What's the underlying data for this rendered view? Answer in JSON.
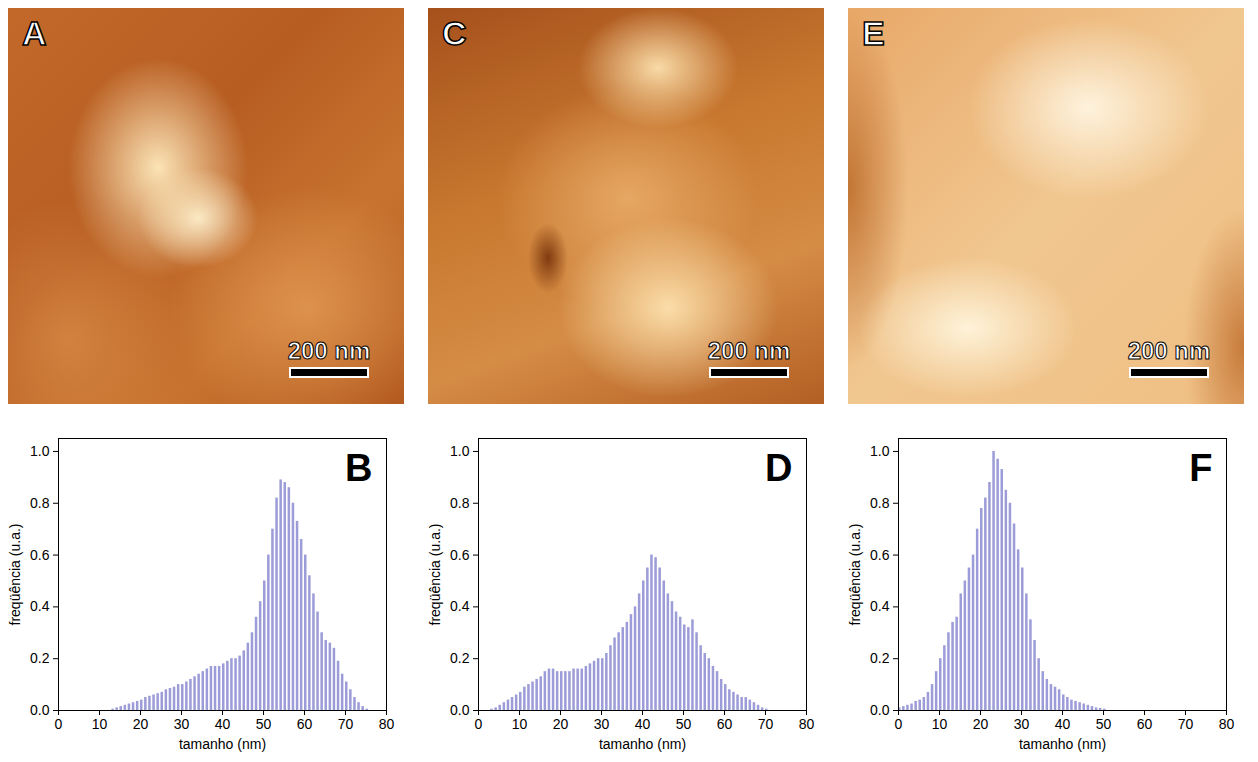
{
  "images": [
    {
      "label": "A",
      "scale_bar": "200 nm"
    },
    {
      "label": "C",
      "scale_bar": "200 nm"
    },
    {
      "label": "E",
      "scale_bar": "200 nm"
    }
  ],
  "chart_data": [
    {
      "type": "histogram",
      "title": "B",
      "x_label": "tamanho (nm)",
      "y_label": "freqüência (u.a.)",
      "color": "#9c9cd8",
      "bins": [
        0,
        1,
        2,
        3,
        4,
        5,
        6,
        7,
        8,
        9,
        10,
        11,
        12,
        13,
        14,
        15,
        16,
        17,
        18,
        19,
        20,
        21,
        22,
        23,
        24,
        25,
        26,
        27,
        28,
        29,
        30,
        31,
        32,
        33,
        34,
        35,
        36,
        37,
        38,
        39,
        40,
        41,
        42,
        43,
        44,
        45,
        46,
        47,
        48,
        49,
        50,
        51,
        52,
        53,
        54,
        55,
        56,
        57,
        58,
        59,
        60,
        61,
        62,
        63,
        64,
        65,
        66,
        67,
        68,
        69,
        70,
        71,
        72,
        73,
        74,
        75,
        76,
        77,
        78,
        79,
        80
      ],
      "values": [
        0,
        0,
        0,
        0,
        0,
        0,
        0,
        0,
        0,
        0,
        0,
        0,
        0,
        0.005,
        0.01,
        0.015,
        0.02,
        0.025,
        0.03,
        0.035,
        0.04,
        0.05,
        0.055,
        0.06,
        0.065,
        0.07,
        0.08,
        0.085,
        0.09,
        0.1,
        0.1,
        0.11,
        0.12,
        0.13,
        0.14,
        0.15,
        0.16,
        0.17,
        0.17,
        0.17,
        0.18,
        0.19,
        0.2,
        0.2,
        0.21,
        0.23,
        0.26,
        0.3,
        0.36,
        0.42,
        0.5,
        0.6,
        0.7,
        0.82,
        0.89,
        0.88,
        0.86,
        0.8,
        0.73,
        0.66,
        0.6,
        0.52,
        0.45,
        0.38,
        0.3,
        0.27,
        0.26,
        0.24,
        0.19,
        0.14,
        0.11,
        0.08,
        0.05,
        0.03,
        0.015,
        0.005,
        0,
        0,
        0,
        0
      ],
      "xlim": [
        0,
        80
      ],
      "xticks": [
        0,
        10,
        20,
        30,
        40,
        50,
        60,
        70,
        80
      ],
      "ylim": [
        0,
        1.05
      ],
      "yticks": [
        {
          "value": 0,
          "label": "0.0"
        },
        {
          "value": 0.2,
          "label": "0.2"
        },
        {
          "value": 0.4,
          "label": "0.4"
        },
        {
          "value": 0.6,
          "label": "0.6"
        },
        {
          "value": 0.8,
          "label": "0.8"
        },
        {
          "value": 1,
          "label": "1.0"
        }
      ]
    },
    {
      "type": "histogram",
      "title": "D",
      "x_label": "tamanho (nm)",
      "y_label": "freqüência (u.a.)",
      "color": "#9c9cd8",
      "bins": [
        0,
        1,
        2,
        3,
        4,
        5,
        6,
        7,
        8,
        9,
        10,
        11,
        12,
        13,
        14,
        15,
        16,
        17,
        18,
        19,
        20,
        21,
        22,
        23,
        24,
        25,
        26,
        27,
        28,
        29,
        30,
        31,
        32,
        33,
        34,
        35,
        36,
        37,
        38,
        39,
        40,
        41,
        42,
        43,
        44,
        45,
        46,
        47,
        48,
        49,
        50,
        51,
        52,
        53,
        54,
        55,
        56,
        57,
        58,
        59,
        60,
        61,
        62,
        63,
        64,
        65,
        66,
        67,
        68,
        69,
        70,
        71,
        72,
        73,
        74,
        75,
        76,
        77,
        78,
        79,
        80
      ],
      "values": [
        0,
        0,
        0,
        0.005,
        0.01,
        0.02,
        0.03,
        0.04,
        0.05,
        0.06,
        0.07,
        0.09,
        0.1,
        0.11,
        0.12,
        0.13,
        0.15,
        0.16,
        0.16,
        0.15,
        0.15,
        0.15,
        0.15,
        0.16,
        0.16,
        0.16,
        0.17,
        0.18,
        0.19,
        0.2,
        0.2,
        0.22,
        0.25,
        0.28,
        0.3,
        0.32,
        0.34,
        0.37,
        0.4,
        0.45,
        0.5,
        0.55,
        0.6,
        0.59,
        0.55,
        0.5,
        0.45,
        0.42,
        0.38,
        0.36,
        0.33,
        0.32,
        0.35,
        0.3,
        0.25,
        0.22,
        0.2,
        0.17,
        0.15,
        0.12,
        0.1,
        0.08,
        0.07,
        0.06,
        0.05,
        0.05,
        0.04,
        0.03,
        0.02,
        0.01,
        0.005,
        0,
        0,
        0,
        0,
        0,
        0,
        0,
        0,
        0
      ],
      "xlim": [
        0,
        80
      ],
      "xticks": [
        0,
        10,
        20,
        30,
        40,
        50,
        60,
        70,
        80
      ],
      "ylim": [
        0,
        1.05
      ],
      "yticks": [
        {
          "value": 0,
          "label": "0.0"
        },
        {
          "value": 0.2,
          "label": "0.2"
        },
        {
          "value": 0.4,
          "label": "0.4"
        },
        {
          "value": 0.6,
          "label": "0.6"
        },
        {
          "value": 0.8,
          "label": "0.8"
        },
        {
          "value": 1,
          "label": "1.0"
        }
      ]
    },
    {
      "type": "histogram",
      "title": "F",
      "x_label": "tamanho (nm)",
      "y_label": "freqüência (u.a.)",
      "color": "#9c9cd8",
      "bins": [
        0,
        1,
        2,
        3,
        4,
        5,
        6,
        7,
        8,
        9,
        10,
        11,
        12,
        13,
        14,
        15,
        16,
        17,
        18,
        19,
        20,
        21,
        22,
        23,
        24,
        25,
        26,
        27,
        28,
        29,
        30,
        31,
        32,
        33,
        34,
        35,
        36,
        37,
        38,
        39,
        40,
        41,
        42,
        43,
        44,
        45,
        46,
        47,
        48,
        49,
        50,
        51,
        52,
        53,
        54,
        55,
        56,
        57,
        58,
        59,
        60,
        61,
        62,
        63,
        64,
        65,
        66,
        67,
        68,
        69,
        70,
        71,
        72,
        73,
        74,
        75,
        76,
        77,
        78,
        79,
        80
      ],
      "values": [
        0.01,
        0.015,
        0.02,
        0.025,
        0.035,
        0.04,
        0.05,
        0.07,
        0.1,
        0.15,
        0.2,
        0.25,
        0.3,
        0.34,
        0.36,
        0.45,
        0.5,
        0.55,
        0.6,
        0.7,
        0.78,
        0.82,
        0.88,
        1,
        0.97,
        0.93,
        0.85,
        0.8,
        0.72,
        0.62,
        0.55,
        0.45,
        0.35,
        0.27,
        0.2,
        0.15,
        0.12,
        0.1,
        0.09,
        0.08,
        0.06,
        0.05,
        0.04,
        0.035,
        0.03,
        0.025,
        0.02,
        0.015,
        0.01,
        0.008,
        0.005,
        0,
        0,
        0,
        0,
        0,
        0,
        0,
        0,
        0,
        0,
        0,
        0,
        0,
        0,
        0,
        0,
        0,
        0,
        0,
        0,
        0,
        0,
        0,
        0,
        0,
        0,
        0,
        0,
        0
      ],
      "xlim": [
        0,
        80
      ],
      "xticks": [
        0,
        10,
        20,
        30,
        40,
        50,
        60,
        70,
        80
      ],
      "ylim": [
        0,
        1.05
      ],
      "yticks": [
        {
          "value": 0,
          "label": "0.0"
        },
        {
          "value": 0.2,
          "label": "0.2"
        },
        {
          "value": 0.4,
          "label": "0.4"
        },
        {
          "value": 0.6,
          "label": "0.6"
        },
        {
          "value": 0.8,
          "label": "0.8"
        },
        {
          "value": 1,
          "label": "1.0"
        }
      ]
    }
  ]
}
